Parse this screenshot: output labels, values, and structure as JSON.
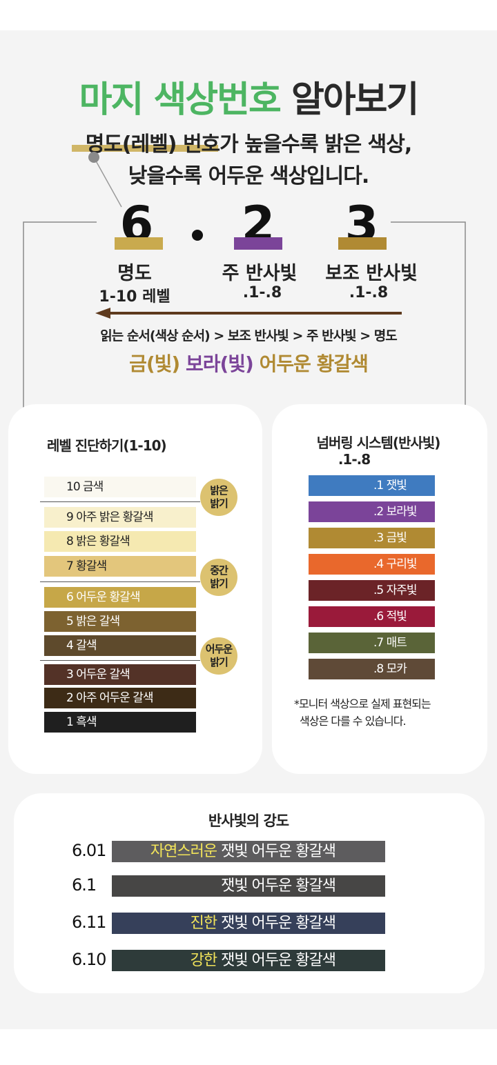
{
  "header": {
    "title_green": "마지 색상번호",
    "title_dark": "알아보기",
    "line1": "명도(레벨) 번호가 높을수록 밝은 색상,",
    "line2": "낮을수록 어두운 색상입니다."
  },
  "code": {
    "digits": [
      "6",
      "2",
      "3"
    ],
    "labels": [
      "명도",
      "주 반사빛",
      "보조 반사빛"
    ],
    "ranges": [
      "1-10 레벨",
      ".1-.8",
      ".1-.8"
    ],
    "reading_order": "읽는 순서(색상 순서) > 보조 반사빛 > 주 반사빛 > 명도",
    "result_gold": "금(빛)",
    "result_purple": "보라(빛)",
    "result_rest": "어두운 황갈색"
  },
  "levels": {
    "title": "레벨 진단하기(1-10)",
    "items": [
      {
        "label": "10 금색",
        "color": "#faf8f0"
      },
      {
        "label": "9 아주 밝은 황갈색",
        "color": "#f8f0cc"
      },
      {
        "label": "8 밝은 황갈색",
        "color": "#f5e9b1"
      },
      {
        "label": "7 황갈색",
        "color": "#e3c67c"
      },
      {
        "label": "6 어두운 황갈색",
        "color": "#c6a748"
      },
      {
        "label": "5 밝은 갈색",
        "color": "#7d6230"
      },
      {
        "label": "4 갈색",
        "color": "#5e4a2c"
      },
      {
        "label": "3 어두운 갈색",
        "color": "#533227"
      },
      {
        "label": "2 아주 어두운 갈색",
        "color": "#3d2b16"
      },
      {
        "label": "1 흑색",
        "color": "#1f1f1f"
      }
    ],
    "tags": [
      "밝은\n밝기",
      "중간\n밝기",
      "어두운\n밝기"
    ]
  },
  "numbering": {
    "title_line1": "넘버링 시스템(반사빛)",
    "title_line2": ".1-.8",
    "items": [
      {
        "label": ".1 잿빛",
        "color": "#3f7bc0"
      },
      {
        "label": ".2 보라빛",
        "color": "#7b4499"
      },
      {
        "label": ".3 금빛",
        "color": "#b08a33"
      },
      {
        "label": ".4 구리빛",
        "color": "#e9682c"
      },
      {
        "label": ".5 자주빛",
        "color": "#6b2327"
      },
      {
        "label": ".6 적빛",
        "color": "#9a1a3a"
      },
      {
        "label": ".7 매트",
        "color": "#5a6438"
      },
      {
        "label": ".8 모카",
        "color": "#5f4a37"
      }
    ],
    "note_line1": "*모니터 색상으로 실제 표현되는",
    "note_line2": "색상은 다를 수 있습니다."
  },
  "intensity": {
    "title": "반사빛의 강도",
    "rows": [
      {
        "code": "6.01",
        "highlight": "자연스러운",
        "text": " 잿빛 어두운 황갈색",
        "color": "#5d5c5e"
      },
      {
        "code": "6.1",
        "highlight": "",
        "text": "잿빛 어두운 황갈색",
        "color": "#474645"
      },
      {
        "code": "6.11",
        "highlight": "진한",
        "text": " 잿빛 어두운 황갈색",
        "color": "#36405a"
      },
      {
        "code": "6.10",
        "highlight": "강한",
        "text": " 잿빛 어두운 황갈색",
        "color": "#2e3b3a"
      }
    ]
  },
  "colors": {
    "green": "#4db562",
    "gold": "#c9aa4e",
    "purple": "#7b4499",
    "bronze": "#b08a33",
    "arrow": "#5e3a1e"
  }
}
